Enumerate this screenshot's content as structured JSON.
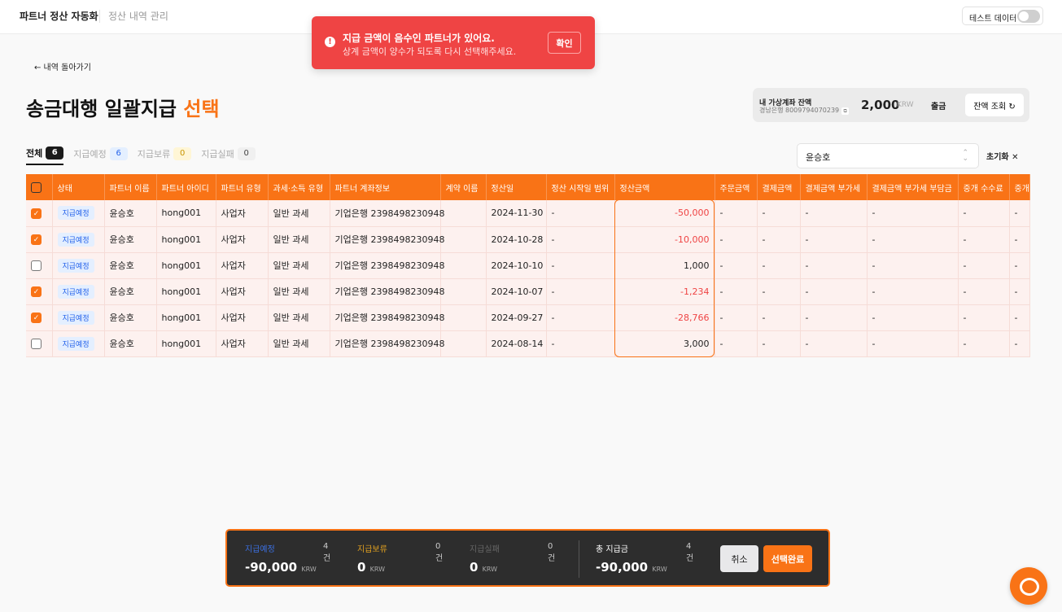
{
  "topbar": {
    "brand": "파트너 정산 자동화",
    "nav": "정산 내역 관리",
    "test_toggle": "테스트 데이터",
    "test_on": false
  },
  "toast": {
    "title": "지급 금액이 음수인 파트너가 있어요.",
    "message": "상계 금액이 양수가 되도록 다시 선택해주세요.",
    "confirm": "확인",
    "color": "#ef4444"
  },
  "back": "← 내역 돌아가기",
  "title": {
    "main": "송금대행 일괄지급",
    "accent": "선택"
  },
  "account": {
    "label": "내 가상계좌 잔액",
    "bank": "경남은행 8009794070239",
    "balance": "2,000",
    "unit": "KRW",
    "withdraw": "출금",
    "refresh": "잔액 조회 ↻"
  },
  "tabs": [
    {
      "label": "전체",
      "count": "6"
    },
    {
      "label": "지급예정",
      "count": "6"
    },
    {
      "label": "지급보류",
      "count": "0"
    },
    {
      "label": "지급실패",
      "count": "0"
    }
  ],
  "search": {
    "value": "윤승호",
    "reset": "초기화 ✕"
  },
  "table": {
    "headers": [
      "상태",
      "파트너 이름",
      "파트너 아이디",
      "파트너 유형",
      "과세·소득 유형",
      "파트너 계좌정보",
      "계약 이름",
      "정산일",
      "정산 시작일 범위",
      "정산금액",
      "주문금액",
      "결제금액",
      "결제금액 부가세",
      "결제금액 부가세 부담금",
      "중개 수수료",
      "중개"
    ],
    "rows": [
      {
        "checked": true,
        "status": "지급예정",
        "name": "윤승호",
        "id": "hong001",
        "type": "사업자",
        "tax": "일반 과세",
        "bank": "기업은행 2398498230948",
        "contract": "",
        "date": "2024-11-30",
        "range": "-",
        "amount": "-50,000",
        "negative": true
      },
      {
        "checked": true,
        "status": "지급예정",
        "name": "윤승호",
        "id": "hong001",
        "type": "사업자",
        "tax": "일반 과세",
        "bank": "기업은행 2398498230948",
        "contract": "",
        "date": "2024-10-28",
        "range": "-",
        "amount": "-10,000",
        "negative": true
      },
      {
        "checked": false,
        "status": "지급예정",
        "name": "윤승호",
        "id": "hong001",
        "type": "사업자",
        "tax": "일반 과세",
        "bank": "기업은행 2398498230948",
        "contract": "",
        "date": "2024-10-10",
        "range": "-",
        "amount": "1,000",
        "negative": false
      },
      {
        "checked": true,
        "status": "지급예정",
        "name": "윤승호",
        "id": "hong001",
        "type": "사업자",
        "tax": "일반 과세",
        "bank": "기업은행 2398498230948",
        "contract": "",
        "date": "2024-10-07",
        "range": "-",
        "amount": "-1,234",
        "negative": true
      },
      {
        "checked": true,
        "status": "지급예정",
        "name": "윤승호",
        "id": "hong001",
        "type": "사업자",
        "tax": "일반 과세",
        "bank": "기업은행 2398498230948",
        "contract": "",
        "date": "2024-09-27",
        "range": "-",
        "amount": "-28,766",
        "negative": true
      },
      {
        "checked": false,
        "status": "지급예정",
        "name": "윤승호",
        "id": "hong001",
        "type": "사업자",
        "tax": "일반 과세",
        "bank": "기업은행 2398498230948",
        "contract": "",
        "date": "2024-08-14",
        "range": "-",
        "amount": "3,000",
        "negative": false
      }
    ],
    "empty": "-"
  },
  "footer": {
    "groups": [
      {
        "label": "지급예정",
        "count": "4 건",
        "value": "-90,000",
        "unit": "KRW",
        "color": "#3b6fe0"
      },
      {
        "label": "지급보류",
        "count": "0 건",
        "value": "0",
        "unit": "KRW",
        "color": "#e0a020"
      },
      {
        "label": "지급실패",
        "count": "0 건",
        "value": "0",
        "unit": "KRW",
        "color": "#666666"
      },
      {
        "label": "총 지급금",
        "count": "4 건",
        "value": "-90,000",
        "unit": "KRW",
        "color": "#ffffff"
      }
    ],
    "cancel": "취소",
    "done": "선택완료"
  }
}
